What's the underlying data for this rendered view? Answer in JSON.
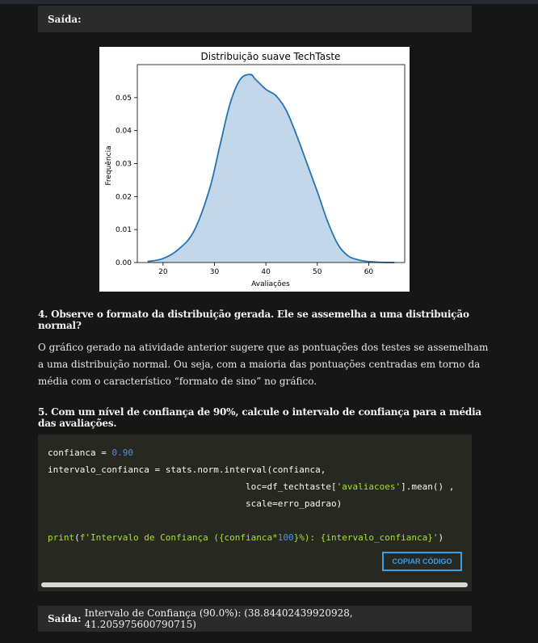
{
  "output_top": {
    "label": "Saída:",
    "value": ""
  },
  "chart_data": {
    "type": "area",
    "title": "Distribuição suave TechTaste",
    "xlabel": "Avaliações",
    "ylabel": "Frequência",
    "xlim": [
      15,
      67
    ],
    "ylim": [
      0,
      0.06
    ],
    "xticks": [
      20,
      30,
      40,
      50,
      60
    ],
    "yticks": [
      0.0,
      0.01,
      0.02,
      0.03,
      0.04,
      0.05
    ],
    "ytick_labels": [
      "0.00",
      "0.01",
      "0.02",
      "0.03",
      "0.04",
      "0.05"
    ],
    "x": [
      17,
      20,
      23,
      26,
      29,
      31,
      33,
      35,
      37,
      38,
      40,
      42,
      44,
      46,
      48,
      50,
      52,
      54,
      56,
      58,
      60,
      62,
      65
    ],
    "y": [
      0.0003,
      0.0012,
      0.004,
      0.0095,
      0.022,
      0.035,
      0.048,
      0.0555,
      0.057,
      0.0555,
      0.0525,
      0.0505,
      0.046,
      0.0385,
      0.03,
      0.0215,
      0.0125,
      0.0055,
      0.002,
      0.0008,
      0.0003,
      0.0001,
      0.0
    ],
    "fill_color": "#c3d7ea",
    "line_color": "#2474b5",
    "grid": false
  },
  "q4": {
    "text": "4. Observe o formato da distribuição gerada. Ele se assemelha a uma distribuição normal?"
  },
  "answer4": {
    "text": "O gráfico gerado na atividade anterior sugere que as pontuações dos testes se assemelham a uma distribuição normal. Ou seja, com a maioria das pontuações centradas em torno da média com o característico “formato de sino” no gráfico."
  },
  "q5": {
    "text": "5. Com um nível de confiança de 90%, calcule o intervalo de confiança para a média das avaliações."
  },
  "code": {
    "l1_a": "confianca = ",
    "l1_num": "0.90",
    "l2": "intervalo_confianca = stats.norm.interval(confianca,",
    "l3_a": "                                     loc=df_techtaste[",
    "l3_str": "'avaliacoes'",
    "l3_b": "].mean() ,",
    "l4": "                                     scale=erro_padrao)",
    "l6_fn": "print",
    "l6_a": "(",
    "l6_str1": "f'Intervalo de Confiança (",
    "l6_br1": "{confianca*",
    "l6_num": "100",
    "l6_br2": "}",
    "l6_str2": "%): ",
    "l6_br3": "{intervalo_confianca}",
    "l6_str3": "'",
    "l6_b": ")"
  },
  "copy_button": {
    "label": "COPIAR CÓDIGO"
  },
  "output_bottom": {
    "label": "Saída:",
    "value": "Intervalo de Confiança (90.0%): (38.84402439920928, 41.205975600790715)"
  }
}
